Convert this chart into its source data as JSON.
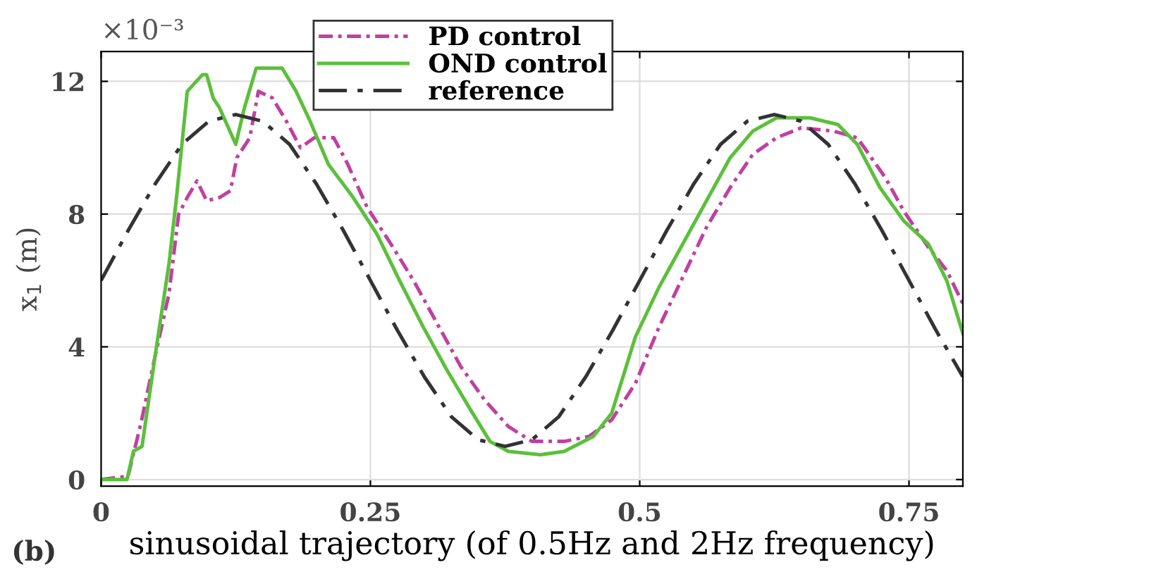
{
  "chart_data": {
    "type": "line",
    "xlabel": "sinusoidal trajectory (of 0.5Hz and 2Hz frequency)",
    "ylabel": "x$_{1}$ (m)",
    "annotations": [
      "×10⁻³",
      "(b)"
    ],
    "xlim": [
      0,
      0.8
    ],
    "xticks": [
      0,
      0.25,
      0.5,
      0.75
    ],
    "ylim": [
      -0.2,
      12.9
    ],
    "yticks": [
      0,
      4,
      8,
      12
    ],
    "grid": true,
    "legend": "top",
    "series": [
      {
        "name": "PD control",
        "color": "#c040a0",
        "line_style": "dotted",
        "x": [
          0,
          0.025,
          0.037,
          0.05,
          0.063,
          0.072,
          0.08,
          0.089,
          0.098,
          0.11,
          0.12,
          0.126,
          0.138,
          0.146,
          0.159,
          0.172,
          0.185,
          0.198,
          0.216,
          0.229,
          0.247,
          0.269,
          0.29,
          0.312,
          0.334,
          0.356,
          0.378,
          0.4,
          0.43,
          0.453,
          0.474,
          0.496,
          0.518,
          0.54,
          0.562,
          0.584,
          0.605,
          0.627,
          0.65,
          0.68,
          0.702,
          0.728,
          0.745,
          0.768,
          0.785,
          0.8
        ],
        "values": [
          0,
          0.1,
          1.7,
          3.7,
          5.6,
          8.0,
          8.5,
          9.0,
          8.4,
          8.5,
          8.7,
          9.7,
          10.3,
          11.7,
          11.5,
          10.8,
          10.0,
          10.3,
          10.3,
          9.5,
          8.2,
          7.1,
          6.0,
          4.7,
          3.4,
          2.4,
          1.6,
          1.15,
          1.15,
          1.3,
          1.8,
          2.9,
          4.6,
          6.1,
          7.6,
          8.8,
          9.8,
          10.3,
          10.6,
          10.5,
          10.3,
          9.1,
          8.1,
          7.0,
          6.3,
          5.3
        ]
      },
      {
        "name": "OND control",
        "color": "#5cbf3c",
        "line_style": "solid",
        "x": [
          0,
          0.024,
          0.03,
          0.038,
          0.05,
          0.063,
          0.07,
          0.08,
          0.094,
          0.098,
          0.104,
          0.11,
          0.125,
          0.133,
          0.144,
          0.168,
          0.181,
          0.194,
          0.211,
          0.234,
          0.256,
          0.277,
          0.299,
          0.321,
          0.343,
          0.361,
          0.378,
          0.408,
          0.43,
          0.457,
          0.474,
          0.496,
          0.518,
          0.54,
          0.562,
          0.584,
          0.605,
          0.627,
          0.658,
          0.684,
          0.702,
          0.723,
          0.745,
          0.768,
          0.785,
          0.8
        ],
        "values": [
          0,
          0,
          0.85,
          1.0,
          3.7,
          6.5,
          8.5,
          11.7,
          12.2,
          12.2,
          11.5,
          11.2,
          10.1,
          11.2,
          12.4,
          12.4,
          11.7,
          10.8,
          9.5,
          8.5,
          7.4,
          6.0,
          4.6,
          3.3,
          2.1,
          1.15,
          0.85,
          0.75,
          0.85,
          1.3,
          2.0,
          4.3,
          5.8,
          7.1,
          8.4,
          9.7,
          10.5,
          10.9,
          10.9,
          10.7,
          10.1,
          8.8,
          7.8,
          7.1,
          6.0,
          4.4
        ]
      },
      {
        "name": "reference",
        "color": "#333333",
        "line_style": "dashed",
        "x": [
          0,
          0.025,
          0.05,
          0.075,
          0.1,
          0.125,
          0.15,
          0.175,
          0.2,
          0.225,
          0.25,
          0.275,
          0.3,
          0.325,
          0.35,
          0.375,
          0.4,
          0.425,
          0.45,
          0.475,
          0.5,
          0.525,
          0.55,
          0.575,
          0.6,
          0.625,
          0.65,
          0.675,
          0.7,
          0.725,
          0.75,
          0.775,
          0.8
        ],
        "values": [
          6,
          7.5,
          8.9,
          10.1,
          10.8,
          11,
          10.8,
          10.1,
          8.9,
          7.5,
          6,
          4.5,
          3.1,
          1.9,
          1.2,
          1,
          1.2,
          1.9,
          3.1,
          4.5,
          6,
          7.5,
          8.9,
          10.1,
          10.8,
          11,
          10.8,
          10.1,
          8.9,
          7.5,
          6,
          4.5,
          3.1
        ]
      }
    ]
  }
}
